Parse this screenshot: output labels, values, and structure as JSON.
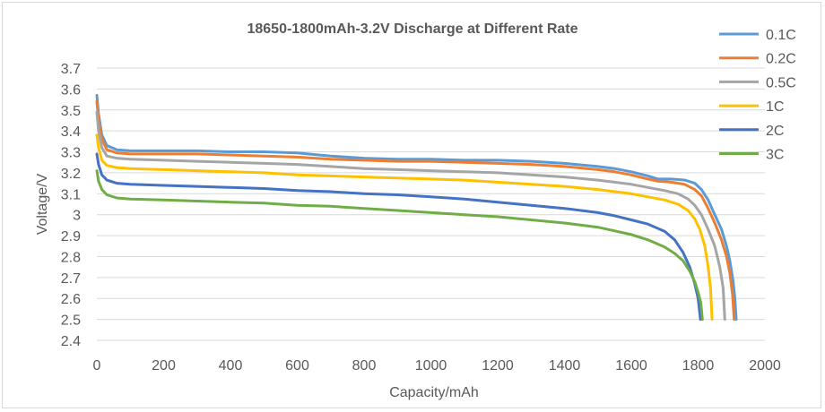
{
  "chart_data": {
    "type": "line",
    "title": "18650-1800mAh-3.2V  Discharge at Different Rate",
    "xlabel": "Capacity/mAh",
    "ylabel": "Voltage/V",
    "xlim": [
      0,
      2000
    ],
    "ylim": [
      2.4,
      3.7
    ],
    "xticks": [
      0,
      200,
      400,
      600,
      800,
      1000,
      1200,
      1400,
      1600,
      1800,
      2000
    ],
    "xtick_labels": [
      "0",
      "200",
      "400",
      "600",
      "800",
      "1000",
      "1200",
      "1400",
      "1600",
      "1800",
      "2000"
    ],
    "yticks": [
      2.4,
      2.5,
      2.6,
      2.7,
      2.8,
      2.9,
      3.0,
      3.1,
      3.2,
      3.3,
      3.4,
      3.5,
      3.6,
      3.7
    ],
    "ytick_labels": [
      "2.4",
      "2.5",
      "2.6",
      "2.7",
      "2.8",
      "2.9",
      "3",
      "3.1",
      "3.2",
      "3.3",
      "3.4",
      "3.5",
      "3.6",
      "3.7"
    ],
    "grid": "horizontal",
    "legend_position": "right",
    "series": [
      {
        "name": "0.1C",
        "color": "#5b9bd5",
        "points": [
          [
            0,
            3.57
          ],
          [
            5,
            3.48
          ],
          [
            15,
            3.38
          ],
          [
            30,
            3.33
          ],
          [
            60,
            3.31
          ],
          [
            100,
            3.305
          ],
          [
            200,
            3.305
          ],
          [
            300,
            3.305
          ],
          [
            400,
            3.3
          ],
          [
            500,
            3.3
          ],
          [
            600,
            3.295
          ],
          [
            700,
            3.28
          ],
          [
            800,
            3.27
          ],
          [
            900,
            3.265
          ],
          [
            1000,
            3.265
          ],
          [
            1100,
            3.26
          ],
          [
            1200,
            3.26
          ],
          [
            1300,
            3.255
          ],
          [
            1400,
            3.245
          ],
          [
            1500,
            3.23
          ],
          [
            1550,
            3.22
          ],
          [
            1600,
            3.205
          ],
          [
            1650,
            3.185
          ],
          [
            1680,
            3.17
          ],
          [
            1720,
            3.17
          ],
          [
            1760,
            3.165
          ],
          [
            1790,
            3.15
          ],
          [
            1810,
            3.12
          ],
          [
            1830,
            3.07
          ],
          [
            1850,
            3.0
          ],
          [
            1870,
            2.93
          ],
          [
            1885,
            2.85
          ],
          [
            1895,
            2.78
          ],
          [
            1905,
            2.68
          ],
          [
            1910,
            2.6
          ],
          [
            1914,
            2.5
          ]
        ]
      },
      {
        "name": "0.2C",
        "color": "#ed7d31",
        "points": [
          [
            0,
            3.54
          ],
          [
            5,
            3.45
          ],
          [
            15,
            3.36
          ],
          [
            30,
            3.31
          ],
          [
            60,
            3.295
          ],
          [
            100,
            3.29
          ],
          [
            200,
            3.29
          ],
          [
            300,
            3.29
          ],
          [
            400,
            3.285
          ],
          [
            500,
            3.28
          ],
          [
            600,
            3.275
          ],
          [
            700,
            3.265
          ],
          [
            800,
            3.26
          ],
          [
            900,
            3.255
          ],
          [
            1000,
            3.255
          ],
          [
            1100,
            3.25
          ],
          [
            1200,
            3.245
          ],
          [
            1300,
            3.24
          ],
          [
            1400,
            3.23
          ],
          [
            1500,
            3.215
          ],
          [
            1550,
            3.205
          ],
          [
            1600,
            3.19
          ],
          [
            1650,
            3.17
          ],
          [
            1680,
            3.16
          ],
          [
            1720,
            3.155
          ],
          [
            1760,
            3.145
          ],
          [
            1790,
            3.12
          ],
          [
            1810,
            3.09
          ],
          [
            1830,
            3.03
          ],
          [
            1850,
            2.96
          ],
          [
            1870,
            2.88
          ],
          [
            1885,
            2.8
          ],
          [
            1895,
            2.72
          ],
          [
            1903,
            2.62
          ],
          [
            1908,
            2.5
          ]
        ]
      },
      {
        "name": "0.5C",
        "color": "#a5a5a5",
        "points": [
          [
            0,
            3.49
          ],
          [
            5,
            3.4
          ],
          [
            15,
            3.32
          ],
          [
            30,
            3.28
          ],
          [
            60,
            3.27
          ],
          [
            100,
            3.265
          ],
          [
            200,
            3.26
          ],
          [
            300,
            3.255
          ],
          [
            400,
            3.25
          ],
          [
            500,
            3.245
          ],
          [
            600,
            3.24
          ],
          [
            700,
            3.23
          ],
          [
            800,
            3.22
          ],
          [
            900,
            3.215
          ],
          [
            1000,
            3.21
          ],
          [
            1100,
            3.205
          ],
          [
            1200,
            3.2
          ],
          [
            1300,
            3.19
          ],
          [
            1400,
            3.18
          ],
          [
            1500,
            3.165
          ],
          [
            1600,
            3.145
          ],
          [
            1650,
            3.13
          ],
          [
            1700,
            3.115
          ],
          [
            1740,
            3.1
          ],
          [
            1770,
            3.075
          ],
          [
            1790,
            3.045
          ],
          [
            1810,
            3.0
          ],
          [
            1830,
            2.93
          ],
          [
            1850,
            2.85
          ],
          [
            1865,
            2.75
          ],
          [
            1875,
            2.65
          ],
          [
            1880,
            2.5
          ]
        ]
      },
      {
        "name": "1C",
        "color": "#ffc000",
        "points": [
          [
            0,
            3.38
          ],
          [
            5,
            3.32
          ],
          [
            15,
            3.26
          ],
          [
            30,
            3.235
          ],
          [
            60,
            3.225
          ],
          [
            100,
            3.22
          ],
          [
            200,
            3.215
          ],
          [
            300,
            3.21
          ],
          [
            400,
            3.205
          ],
          [
            500,
            3.2
          ],
          [
            600,
            3.19
          ],
          [
            700,
            3.185
          ],
          [
            800,
            3.18
          ],
          [
            900,
            3.175
          ],
          [
            1000,
            3.17
          ],
          [
            1100,
            3.165
          ],
          [
            1200,
            3.155
          ],
          [
            1300,
            3.145
          ],
          [
            1400,
            3.135
          ],
          [
            1500,
            3.12
          ],
          [
            1600,
            3.1
          ],
          [
            1650,
            3.085
          ],
          [
            1700,
            3.07
          ],
          [
            1740,
            3.05
          ],
          [
            1770,
            3.02
          ],
          [
            1790,
            2.98
          ],
          [
            1805,
            2.93
          ],
          [
            1820,
            2.85
          ],
          [
            1830,
            2.75
          ],
          [
            1837,
            2.65
          ],
          [
            1842,
            2.5
          ]
        ]
      },
      {
        "name": "2C",
        "color": "#4472c4",
        "points": [
          [
            0,
            3.29
          ],
          [
            5,
            3.24
          ],
          [
            15,
            3.19
          ],
          [
            30,
            3.165
          ],
          [
            60,
            3.15
          ],
          [
            100,
            3.145
          ],
          [
            200,
            3.14
          ],
          [
            300,
            3.135
          ],
          [
            400,
            3.13
          ],
          [
            500,
            3.125
          ],
          [
            600,
            3.115
          ],
          [
            700,
            3.11
          ],
          [
            800,
            3.1
          ],
          [
            900,
            3.095
          ],
          [
            1000,
            3.085
          ],
          [
            1100,
            3.075
          ],
          [
            1200,
            3.06
          ],
          [
            1300,
            3.045
          ],
          [
            1400,
            3.03
          ],
          [
            1500,
            3.01
          ],
          [
            1550,
            2.995
          ],
          [
            1600,
            2.975
          ],
          [
            1650,
            2.955
          ],
          [
            1700,
            2.92
          ],
          [
            1730,
            2.88
          ],
          [
            1755,
            2.82
          ],
          [
            1775,
            2.75
          ],
          [
            1790,
            2.67
          ],
          [
            1800,
            2.6
          ],
          [
            1807,
            2.5
          ]
        ]
      },
      {
        "name": "3C",
        "color": "#70ad47",
        "points": [
          [
            0,
            3.21
          ],
          [
            5,
            3.16
          ],
          [
            15,
            3.12
          ],
          [
            30,
            3.095
          ],
          [
            60,
            3.08
          ],
          [
            100,
            3.075
          ],
          [
            200,
            3.07
          ],
          [
            300,
            3.065
          ],
          [
            400,
            3.06
          ],
          [
            500,
            3.055
          ],
          [
            600,
            3.045
          ],
          [
            700,
            3.04
          ],
          [
            800,
            3.03
          ],
          [
            900,
            3.02
          ],
          [
            1000,
            3.01
          ],
          [
            1100,
            3.0
          ],
          [
            1200,
            2.99
          ],
          [
            1300,
            2.975
          ],
          [
            1400,
            2.96
          ],
          [
            1500,
            2.94
          ],
          [
            1600,
            2.905
          ],
          [
            1650,
            2.88
          ],
          [
            1700,
            2.845
          ],
          [
            1730,
            2.815
          ],
          [
            1755,
            2.78
          ],
          [
            1775,
            2.73
          ],
          [
            1790,
            2.68
          ],
          [
            1800,
            2.63
          ],
          [
            1808,
            2.58
          ],
          [
            1813,
            2.5
          ]
        ]
      }
    ]
  }
}
